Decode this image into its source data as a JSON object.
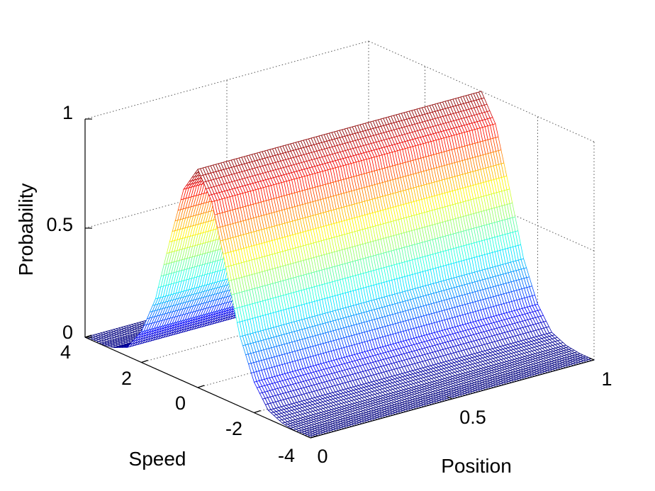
{
  "chart_data": {
    "type": "surface",
    "title": "",
    "xlabel": "Position",
    "ylabel": "Speed",
    "zlabel": "Probability",
    "xlim": [
      0,
      1
    ],
    "ylim": [
      -4,
      4
    ],
    "zlim": [
      0,
      1
    ],
    "x_ticks": [
      "0",
      "0.5",
      "1"
    ],
    "y_ticks": [
      "-4",
      "-2",
      "0",
      "2",
      "4"
    ],
    "z_ticks": [
      "0",
      "0.5",
      "1"
    ],
    "grid": true,
    "colormap": "jet",
    "surface": {
      "x_values": [
        0,
        0.1,
        0.2,
        0.3,
        0.4,
        0.5,
        0.6,
        0.7,
        0.8,
        0.9,
        1.0
      ],
      "speed_values": [
        -4,
        -3.5,
        -3,
        -2.5,
        -2,
        -1.5,
        -1,
        -0.5,
        0,
        0.5,
        1,
        1.5,
        2,
        2.5,
        3,
        3.5,
        4
      ],
      "probability_vs_speed": [
        0.0,
        0.0,
        0.01,
        0.04,
        0.14,
        0.32,
        0.61,
        0.88,
        1.0,
        0.88,
        0.61,
        0.32,
        0.14,
        0.04,
        0.01,
        0.0,
        0.0
      ],
      "note_peak_speed": 0,
      "peak_probability": 1.0
    }
  }
}
